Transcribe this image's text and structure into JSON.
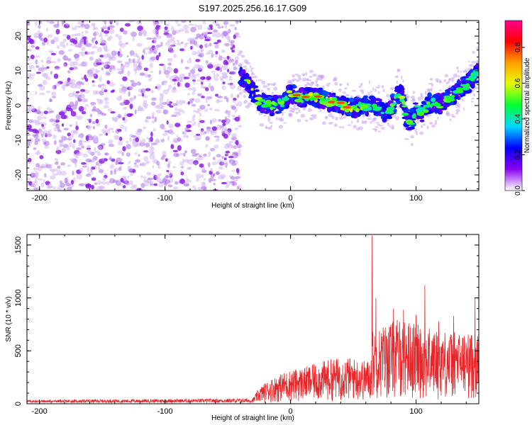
{
  "title": "S197.2025.256.16.17.G09",
  "colors": {
    "snr_line": "#e8262a",
    "scatter_noise": "#c8a0ec",
    "frame": "#000000"
  },
  "chart_data": [
    {
      "type": "heatmap",
      "xlabel": "Height of straight line (km)",
      "ylabel": "Frequency (Hz)",
      "xlim": [
        -210,
        150
      ],
      "ylim": [
        -24.5,
        24.5
      ],
      "x_ticks": [
        -200,
        -100,
        0,
        100
      ],
      "x_tick_labels": [
        "-200",
        "-100",
        "0",
        "100"
      ],
      "y_ticks": [
        -20,
        -10,
        0,
        10,
        20
      ],
      "y_tick_labels": [
        "-20",
        "-10",
        "0",
        "10",
        "20"
      ],
      "noise_region_x": [
        -210,
        -40
      ],
      "ridge": {
        "x": [
          -40,
          -35,
          -30,
          -25,
          -20,
          -15,
          -10,
          -5,
          0,
          5,
          10,
          15,
          20,
          25,
          30,
          35,
          40,
          45,
          50,
          55,
          60,
          65,
          70,
          75,
          80,
          85,
          88,
          92,
          96,
          100,
          105,
          110,
          115,
          120,
          125,
          130,
          135,
          140,
          145,
          150
        ],
        "y": [
          9,
          7,
          4,
          1,
          0.5,
          0,
          0.5,
          1,
          4,
          2.5,
          2,
          3,
          2.5,
          2,
          1,
          1,
          0.5,
          -0.5,
          -1,
          0,
          0,
          0,
          -0.5,
          -2,
          -1,
          3,
          4,
          -3,
          -5,
          -1,
          -2,
          0.5,
          1,
          0,
          2,
          3,
          5,
          6,
          8,
          10
        ],
        "peak": [
          1,
          0.7,
          0.8,
          0.9,
          0.5,
          0.55,
          0.6,
          0.5,
          0.85,
          0.6,
          0.8,
          0.95,
          0.9,
          0.7,
          0.8,
          1.0,
          0.95,
          0.85,
          0.8,
          0.75,
          0.6,
          0.55,
          0.6,
          0.5,
          0.55,
          0.6,
          0.7,
          0.55,
          0.5,
          0.45,
          0.5,
          0.5,
          0.45,
          0.5,
          0.5,
          0.45,
          0.4,
          0.45,
          0.5,
          0.6
        ]
      }
    },
    {
      "type": "colorbar",
      "label": "Normalized spectral amplitude",
      "range": [
        0,
        0.95
      ],
      "ticks": [
        0,
        0.2,
        0.4,
        0.6,
        0.8
      ],
      "tick_labels": [
        "0.0",
        "0.2",
        "0.4",
        "0.6",
        "0.8"
      ],
      "colormap": [
        "#ffffff",
        "#8a00f0",
        "#0000ff",
        "#00d8ff",
        "#00ff30",
        "#e6ff00",
        "#ffa000",
        "#ff0000",
        "#ff0090"
      ]
    },
    {
      "type": "line",
      "xlabel": "Height of straight line (km)",
      "ylabel": "SNR (10 * v/v)",
      "xlim": [
        -210,
        150
      ],
      "ylim": [
        0,
        1600
      ],
      "x_ticks": [
        -200,
        -100,
        0,
        100
      ],
      "x_tick_labels": [
        "-200",
        "-100",
        "0",
        "100"
      ],
      "y_ticks": [
        0,
        500,
        1000,
        1500
      ],
      "y_tick_labels": [
        "0",
        "500",
        "1000",
        "1500"
      ],
      "envelope": {
        "x": [
          -210,
          -30,
          -28,
          -25,
          -20,
          -15,
          -10,
          -5,
          0,
          5,
          10,
          15,
          20,
          25,
          30,
          35,
          40,
          45,
          50,
          55,
          60,
          64,
          65,
          70,
          75,
          80,
          85,
          90,
          95,
          100,
          105,
          110,
          115,
          120,
          125,
          130,
          135,
          140,
          145,
          150
        ],
        "y": [
          35,
          50,
          90,
          150,
          200,
          240,
          270,
          300,
          320,
          330,
          345,
          360,
          380,
          400,
          420,
          430,
          440,
          440,
          430,
          420,
          410,
          420,
          700,
          720,
          760,
          780,
          800,
          800,
          780,
          760,
          740,
          720,
          700,
          700,
          690,
          680,
          680,
          670,
          670,
          650
        ]
      },
      "spikes": [
        {
          "x": 65,
          "y": 1590
        },
        {
          "x": 68,
          "y": 1000
        },
        {
          "x": 82,
          "y": 900
        },
        {
          "x": 90,
          "y": 890
        },
        {
          "x": 100,
          "y": 840
        },
        {
          "x": 107,
          "y": 1120
        },
        {
          "x": 118,
          "y": 780
        },
        {
          "x": 130,
          "y": 830
        },
        {
          "x": 147,
          "y": 1000
        }
      ]
    }
  ]
}
